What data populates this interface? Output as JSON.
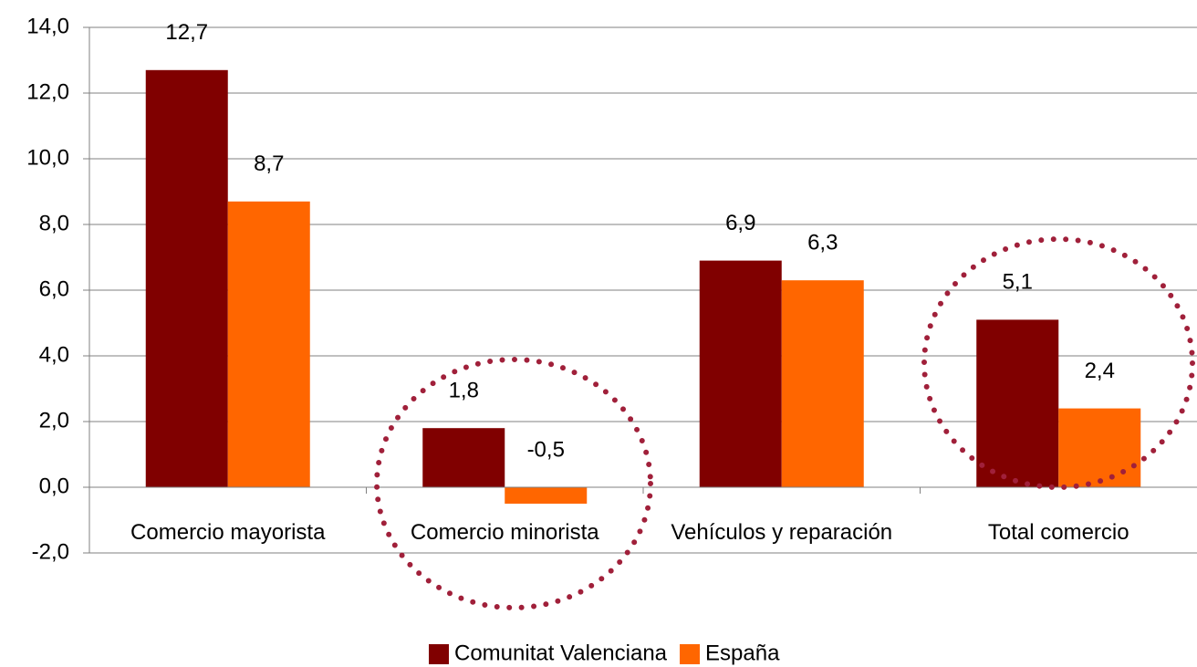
{
  "chart_data": {
    "type": "bar",
    "categories": [
      "Comercio mayorista",
      "Comercio minorista",
      "Vehículos y reparación",
      "Total comercio"
    ],
    "series": [
      {
        "name": "Comunitat Valenciana",
        "color": "#800000",
        "values": [
          12.7,
          1.8,
          6.9,
          5.1
        ],
        "value_labels": [
          "12,7",
          "1,8",
          "6,9",
          "5,1"
        ]
      },
      {
        "name": "España",
        "color": "#ff6600",
        "values": [
          8.7,
          -0.5,
          6.3,
          2.4
        ],
        "value_labels": [
          "8,7",
          "-0,5",
          "6,3",
          "2,4"
        ]
      }
    ],
    "ylim": [
      -2,
      14
    ],
    "yticks": [
      {
        "value": -2,
        "label": "-2,0"
      },
      {
        "value": 0,
        "label": "0,0"
      },
      {
        "value": 2,
        "label": "2,0"
      },
      {
        "value": 4,
        "label": "4,0"
      },
      {
        "value": 6,
        "label": "6,0"
      },
      {
        "value": 8,
        "label": "8,0"
      },
      {
        "value": 10,
        "label": "10,0"
      },
      {
        "value": 12,
        "label": "12,0"
      },
      {
        "value": 14,
        "label": "14,0"
      }
    ],
    "grid": true,
    "legend": "bottom"
  }
}
